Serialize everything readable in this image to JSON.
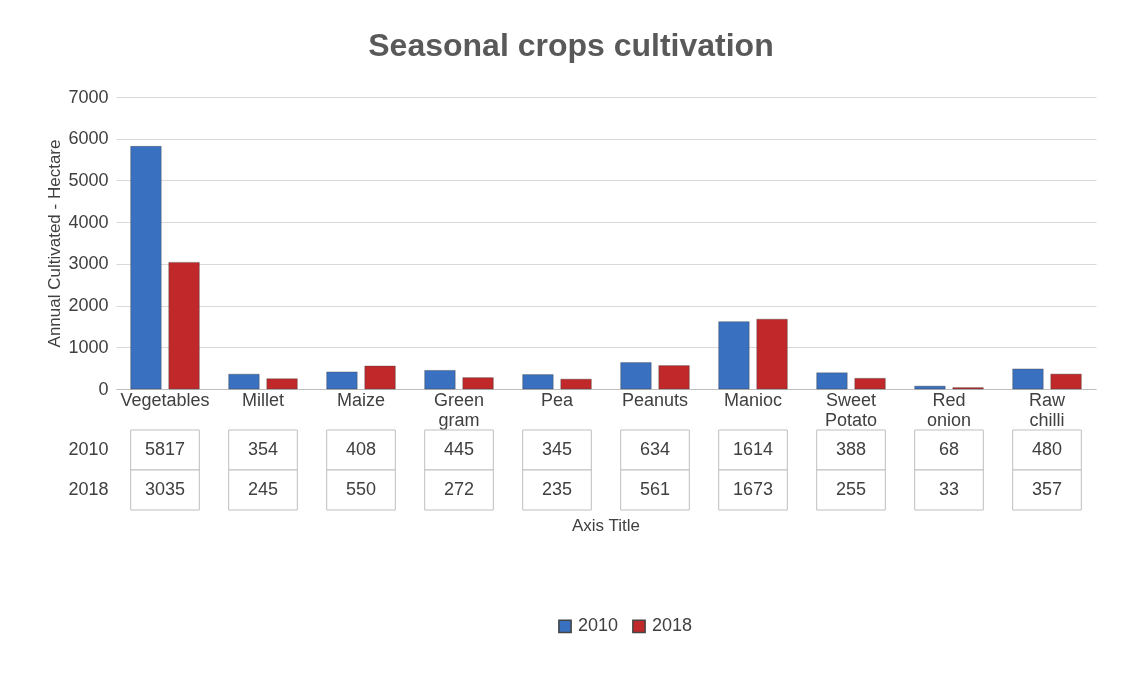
{
  "chart_data": {
    "type": "bar",
    "title": "Seasonal crops cultivation",
    "annotations": [
      "Axis Title"
    ],
    "ylabel": "Annual Cultivated - Hectare",
    "categories": [
      "Vegetables",
      "Millet",
      "Maize",
      "Green gram",
      "Pea",
      "Peanuts",
      "Manioc",
      "Sweet Potato",
      "Red onion",
      "Raw chilli"
    ],
    "series": [
      {
        "name": "2010",
        "color": "#3a70c0",
        "values": [
          5817,
          354,
          408,
          445,
          345,
          634,
          1614,
          388,
          68,
          480
        ]
      },
      {
        "name": "2018",
        "color": "#c0282a",
        "values": [
          3035,
          245,
          550,
          272,
          235,
          561,
          1673,
          255,
          33,
          357
        ]
      }
    ],
    "ylim": [
      0,
      7000
    ],
    "yticks": [
      0,
      1000,
      2000,
      3000,
      4000,
      5000,
      6000,
      7000
    ],
    "grid": "y",
    "legend": "bottom",
    "data_labels": true
  }
}
